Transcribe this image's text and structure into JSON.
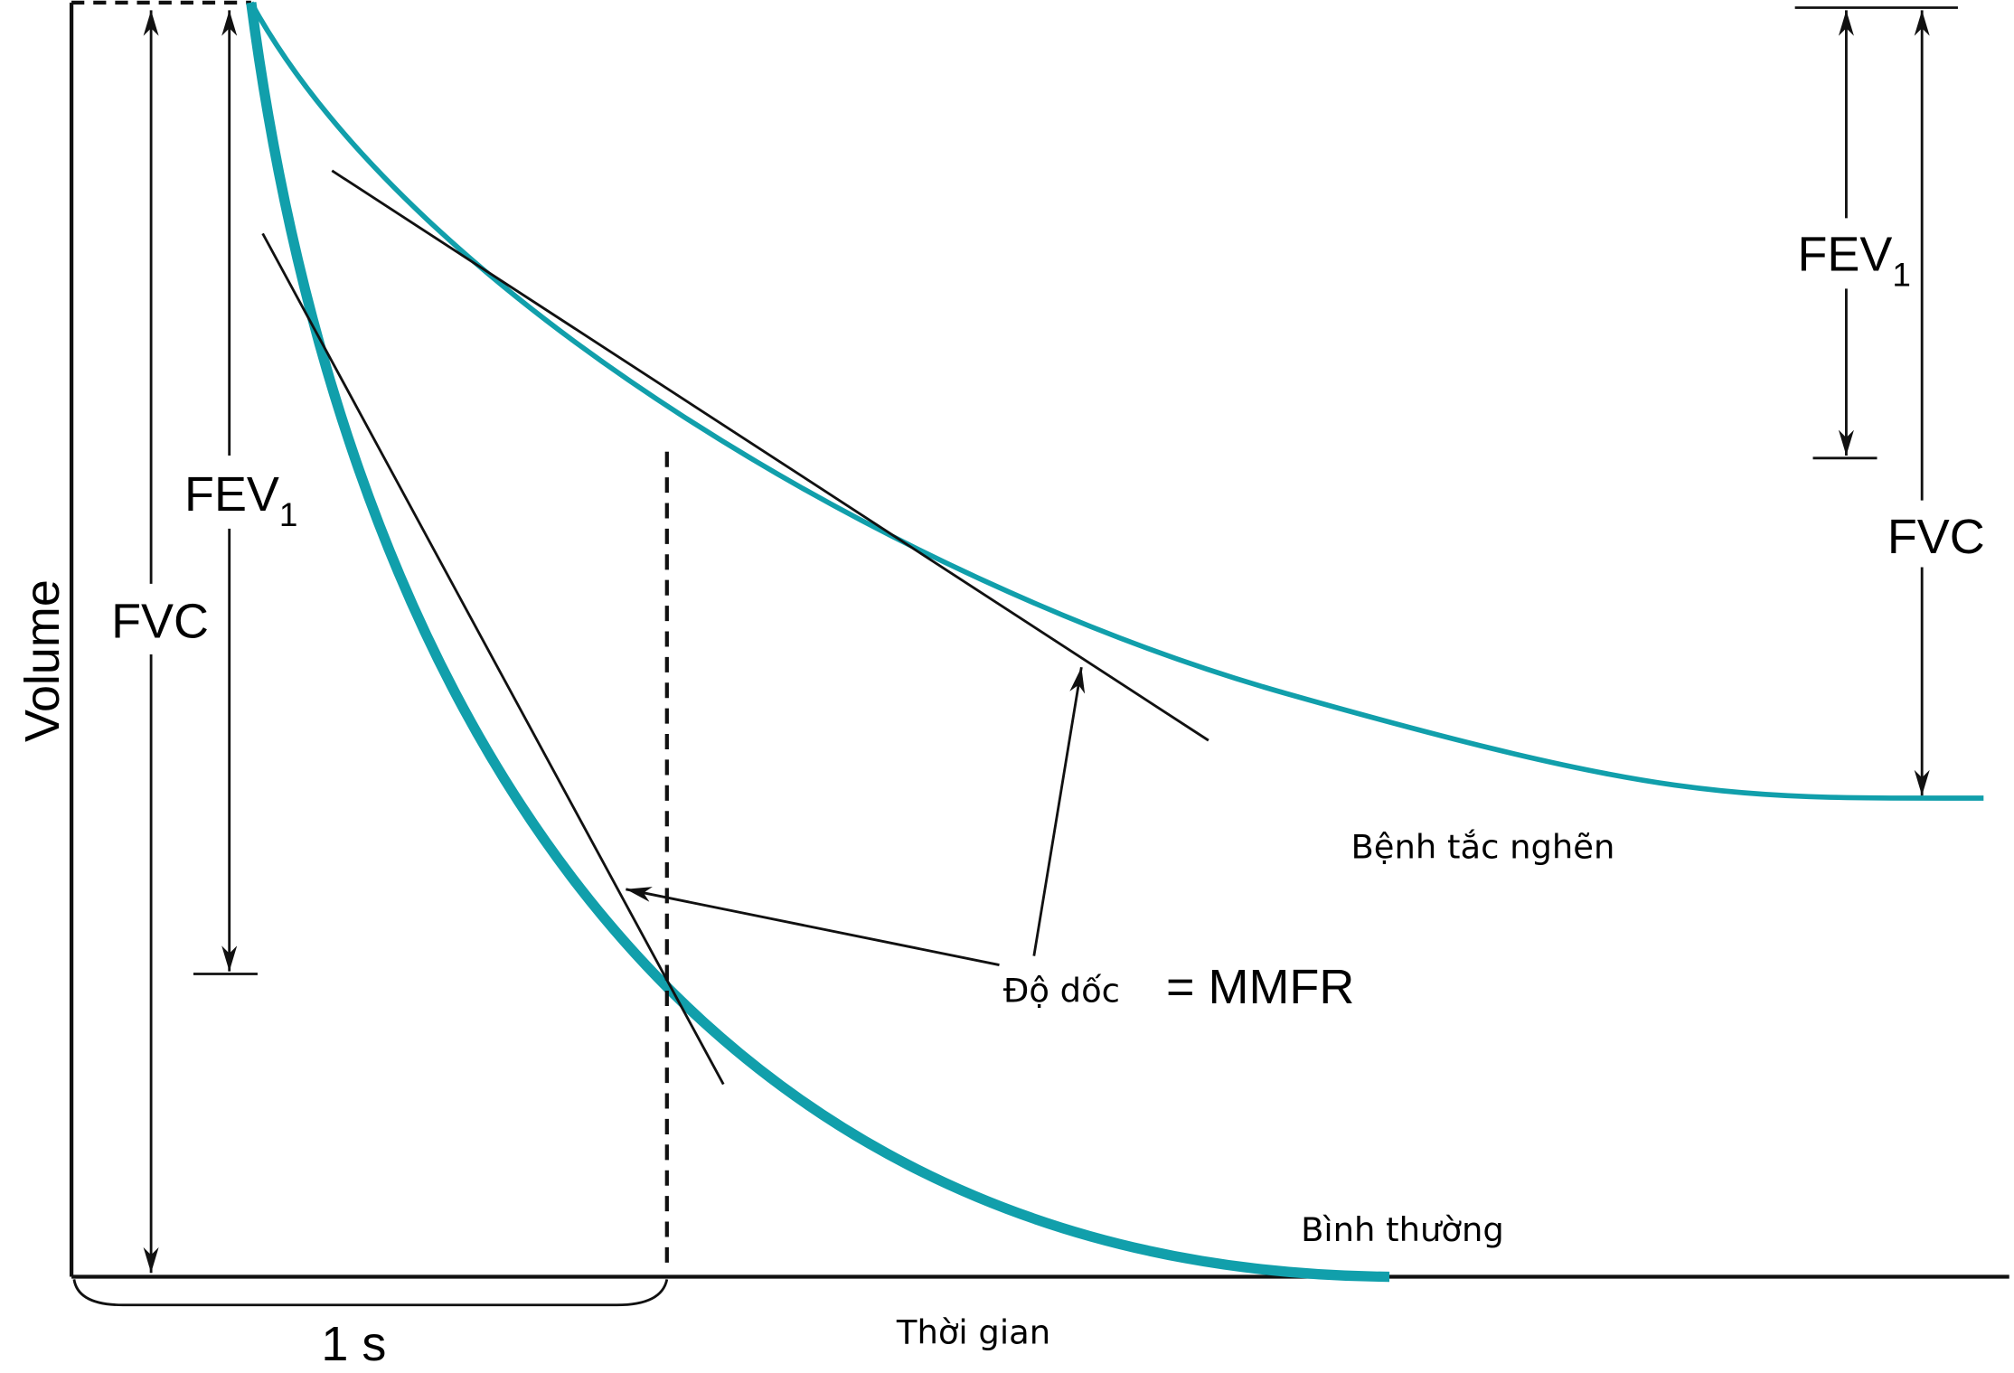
{
  "axes": {
    "y_label": "Volume",
    "x_label": "Thời gian"
  },
  "normal": {
    "label": "Bình thường",
    "fvc": "FVC",
    "fev1": {
      "text": "FEV",
      "subscript": "1"
    }
  },
  "obstructive": {
    "label": "Bệnh tắc nghẽn",
    "fvc": "FVC",
    "fev1": {
      "text": "FEV",
      "subscript": "1"
    }
  },
  "slope": {
    "label": "Độ dốc",
    "value": "= MMFR"
  },
  "time_unit": "1 s"
}
